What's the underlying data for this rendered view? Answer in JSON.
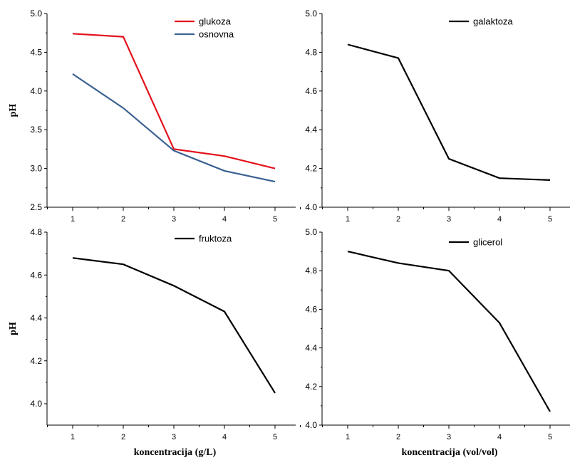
{
  "chart_data": [
    {
      "type": "line",
      "x": [
        1,
        2,
        3,
        4,
        5
      ],
      "xticks": [
        "1",
        "2",
        "3",
        "4",
        "5"
      ],
      "ylim": [
        2.5,
        5.0
      ],
      "yticks": [
        "2.5",
        "3.0",
        "3.5",
        "4.0",
        "4.5",
        "5.0"
      ],
      "xlabel": "",
      "ylabel": "pH",
      "legend_position": "top-right",
      "series": [
        {
          "name": "glukoza",
          "color": "#e3111b",
          "values": [
            4.74,
            4.7,
            3.25,
            3.16,
            3.0
          ]
        },
        {
          "name": "osnovna",
          "color": "#3a6190",
          "values": [
            4.22,
            3.78,
            3.23,
            2.97,
            2.83
          ]
        }
      ]
    },
    {
      "type": "line",
      "x": [
        1,
        2,
        3,
        4,
        5
      ],
      "xticks": [
        "1",
        "2",
        "3",
        "4",
        "5"
      ],
      "ylim": [
        4.0,
        5.0
      ],
      "yticks": [
        "4.0",
        "4.2",
        "4.4",
        "4.6",
        "4.8",
        "5.0"
      ],
      "xlabel": "",
      "ylabel": "",
      "legend_position": "top-right",
      "series": [
        {
          "name": "galaktoza",
          "color": "#000000",
          "values": [
            4.84,
            4.77,
            4.25,
            4.15,
            4.14
          ]
        }
      ]
    },
    {
      "type": "line",
      "x": [
        1,
        2,
        3,
        4,
        5
      ],
      "xticks": [
        "1",
        "2",
        "3",
        "4",
        "5"
      ],
      "ylim": [
        3.9,
        4.8
      ],
      "yticks": [
        "4.0",
        "4.2",
        "4.4",
        "4.6",
        "4.8"
      ],
      "xlabel": "koncentracija (g/L)",
      "ylabel": "pH",
      "legend_position": "top-right",
      "series": [
        {
          "name": "fruktoza",
          "color": "#000000",
          "values": [
            4.68,
            4.65,
            4.55,
            4.43,
            4.05
          ]
        }
      ]
    },
    {
      "type": "line",
      "x": [
        1,
        2,
        3,
        4,
        5
      ],
      "xticks": [
        "1",
        "2",
        "3",
        "4",
        "5"
      ],
      "ylim": [
        4.0,
        5.0
      ],
      "yticks": [
        "4.0",
        "4.2",
        "4.4",
        "4.6",
        "4.8",
        "5.0"
      ],
      "xlabel": "koncentracija (vol/vol)",
      "ylabel": "",
      "legend_position": "top-right",
      "series": [
        {
          "name": "glicerol",
          "color": "#000000",
          "values": [
            4.9,
            4.84,
            4.8,
            4.53,
            4.07
          ]
        }
      ]
    }
  ]
}
